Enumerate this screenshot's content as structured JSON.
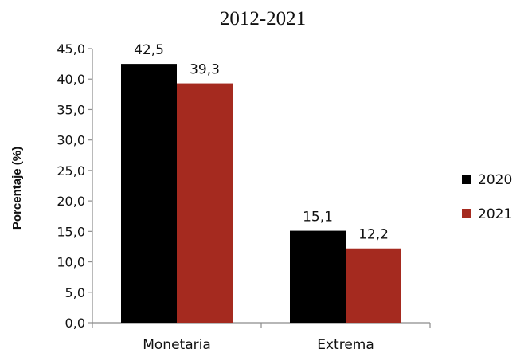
{
  "chart_data": {
    "type": "bar",
    "title": "2012-2021",
    "ylabel": "Porcentaje (%)",
    "xlabel": "",
    "categories": [
      "Monetaria",
      "Extrema"
    ],
    "series": [
      {
        "name": "2020",
        "values": [
          42.5,
          15.1
        ],
        "labels": [
          "42,5",
          "15,1"
        ],
        "color": "#000000"
      },
      {
        "name": "2021",
        "values": [
          39.3,
          12.2
        ],
        "labels": [
          "39,3",
          "12,2"
        ],
        "color": "#a52a1f"
      }
    ],
    "ylim": [
      0,
      45
    ],
    "yticks": [
      0,
      5,
      10,
      15,
      20,
      25,
      30,
      35,
      40,
      45
    ],
    "ytick_labels": [
      "0,0",
      "5,0",
      "10,0",
      "15,0",
      "20,0",
      "25,0",
      "30,0",
      "35,0",
      "40,0",
      "45,0"
    ],
    "grid": false,
    "legend_position": "right"
  }
}
